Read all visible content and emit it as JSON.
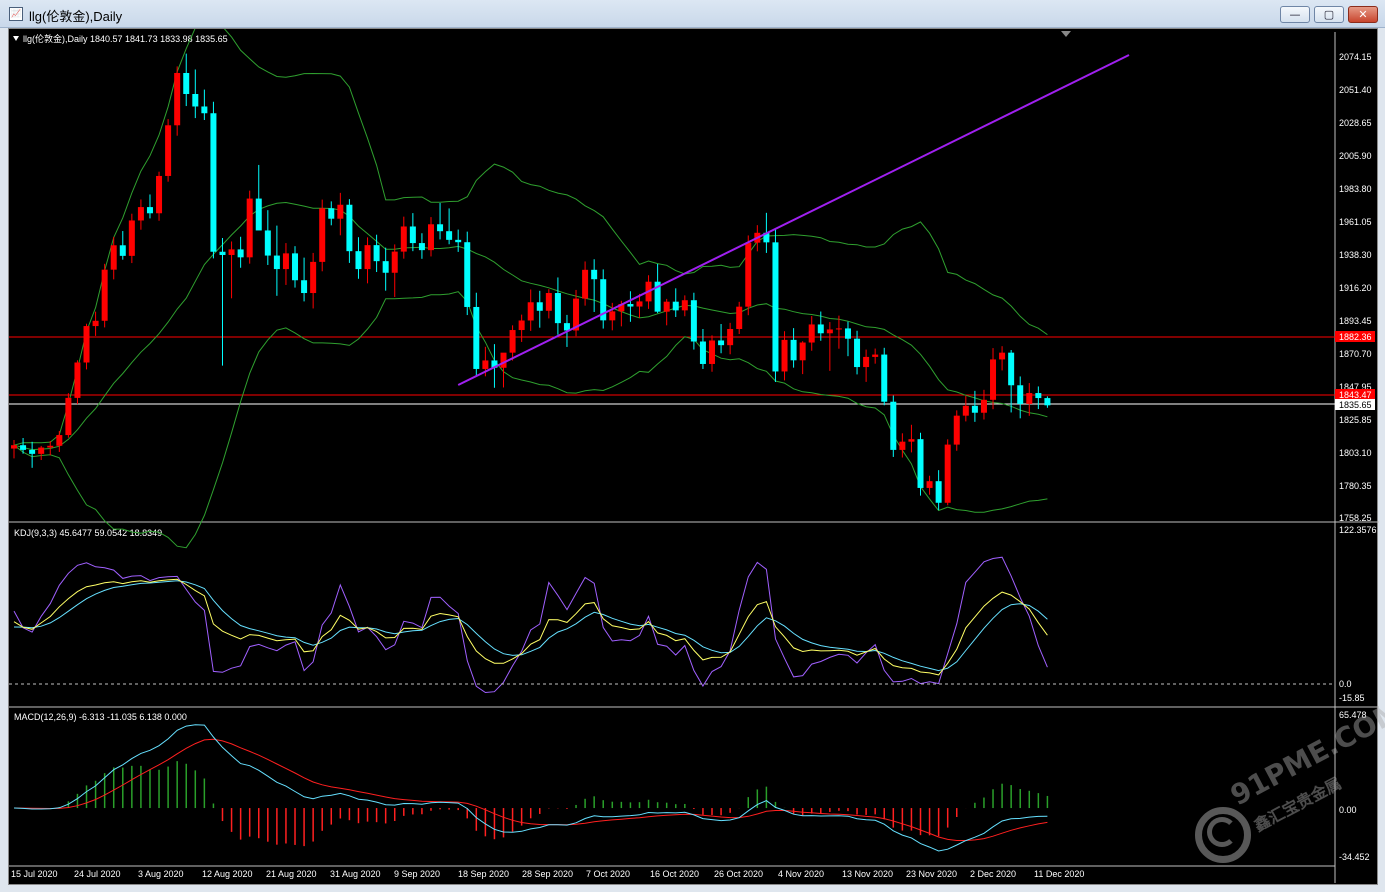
{
  "window": {
    "title": "llg(伦敦金),Daily",
    "icon": "chart-window-icon",
    "buttons": {
      "minimize": "—",
      "maximize": "▢",
      "close": "✕"
    }
  },
  "main_panel": {
    "header": "llg(伦敦金),Daily  1840.57 1841.73 1833.98 1835.65",
    "price_labels": [
      "2074.15",
      "2051.40",
      "2028.65",
      "2005.90",
      "1983.80",
      "1961.05",
      "1938.30",
      "1916.20",
      "1893.45",
      "1870.70",
      "1847.95",
      "1825.85",
      "1803.10",
      "1780.35",
      "1758.25"
    ],
    "marker_levels": [
      {
        "label": "1882.36",
        "value": 1882.36,
        "color": "#ff0000"
      },
      {
        "label": "1843.47",
        "value": 1843.47,
        "color": "#ff0000"
      },
      {
        "label": "1835.65",
        "value": 1835.65,
        "color": "#ffffff"
      }
    ]
  },
  "kdj_panel": {
    "header": "KDJ(9,3,3) 45.6477 59.0542 18.8349",
    "scale_labels": [
      "122.3576",
      "0.0",
      "-15.85"
    ]
  },
  "macd_panel": {
    "header": "MACD(12,26,9) -6.313 -11.035 6.138 0.000",
    "scale_labels": [
      "65.478",
      "0.00",
      "-34.452"
    ]
  },
  "x_axis_labels": [
    "15 Jul 2020",
    "24 Jul 2020",
    "3 Aug 2020",
    "12 Aug 2020",
    "21 Aug 2020",
    "31 Aug 2020",
    "9 Sep 2020",
    "18 Sep 2020",
    "28 Sep 2020",
    "7 Oct 2020",
    "16 Oct 2020",
    "26 Oct 2020",
    "4 Nov 2020",
    "13 Nov 2020",
    "23 Nov 2020",
    "2 Dec 2020",
    "11 Dec 2020"
  ],
  "watermark": {
    "main": "91PME.COM",
    "sub": "鑫汇宝贵金属"
  },
  "colors": {
    "bull": "#ff0000",
    "bear": "#00ffff",
    "bands": "#2fa02f",
    "trend": "#a020f0",
    "k": "#ffff66",
    "d": "#66e0ff",
    "j": "#a060ff",
    "macd_line": "#66e0ff",
    "signal_line": "#ff2020",
    "hist_pos": "#2aa02a",
    "hist_neg": "#ff2020"
  },
  "chart_data": {
    "type": "candlestick",
    "price_axis": {
      "min": 1758.25,
      "max": 2074.15
    },
    "candles": [
      [
        1806.2,
        1812.0,
        1799.5,
        1808.5
      ],
      [
        1808.5,
        1813.4,
        1802.7,
        1805.3
      ],
      [
        1805.3,
        1810.8,
        1793.1,
        1802.6
      ],
      [
        1802.6,
        1808.0,
        1798.4,
        1806.9
      ],
      [
        1806.9,
        1811.3,
        1801.6,
        1808.1
      ],
      [
        1808.1,
        1818.2,
        1803.9,
        1815.4
      ],
      [
        1815.4,
        1843.9,
        1813.6,
        1840.7
      ],
      [
        1840.7,
        1866.3,
        1836.5,
        1864.8
      ],
      [
        1864.8,
        1891.2,
        1860.1,
        1889.6
      ],
      [
        1889.6,
        1899.4,
        1882.9,
        1893.2
      ],
      [
        1893.2,
        1932.0,
        1888.7,
        1928.0
      ],
      [
        1928.0,
        1950.3,
        1921.4,
        1944.6
      ],
      [
        1944.6,
        1954.3,
        1934.8,
        1937.4
      ],
      [
        1937.4,
        1966.1,
        1932.5,
        1961.5
      ],
      [
        1961.5,
        1975.8,
        1955.2,
        1970.6
      ],
      [
        1970.6,
        1979.2,
        1962.9,
        1966.4
      ],
      [
        1966.4,
        1994.7,
        1961.3,
        1991.8
      ],
      [
        1991.8,
        2030.5,
        1987.9,
        2026.3
      ],
      [
        2026.3,
        2066.4,
        2019.2,
        2061.9
      ],
      [
        2061.9,
        2075.1,
        2039.4,
        2047.6
      ],
      [
        2047.6,
        2064.3,
        2031.2,
        2039.1
      ],
      [
        2039.1,
        2050.6,
        2029.9,
        2034.5
      ],
      [
        2034.5,
        2042.3,
        1935.7,
        1940.2
      ],
      [
        1940.2,
        1949.6,
        1862.7,
        1938.0
      ],
      [
        1938.0,
        1947.2,
        1908.5,
        1941.8
      ],
      [
        1941.8,
        1950.4,
        1929.3,
        1936.4
      ],
      [
        1936.4,
        1981.8,
        1932.1,
        1976.4
      ],
      [
        1976.4,
        1999.3,
        1957.4,
        1954.7
      ],
      [
        1954.7,
        1968.5,
        1931.2,
        1937.6
      ],
      [
        1937.6,
        1958.0,
        1910.2,
        1928.4
      ],
      [
        1928.4,
        1946.1,
        1917.6,
        1939.1
      ],
      [
        1939.1,
        1944.0,
        1915.8,
        1920.8
      ],
      [
        1920.8,
        1936.2,
        1906.4,
        1912.1
      ],
      [
        1912.1,
        1939.4,
        1901.6,
        1933.3
      ],
      [
        1933.3,
        1975.7,
        1926.9,
        1969.8
      ],
      [
        1969.8,
        1974.5,
        1958.2,
        1962.7
      ],
      [
        1962.7,
        1980.3,
        1951.4,
        1972.2
      ],
      [
        1972.2,
        1976.0,
        1932.6,
        1940.6
      ],
      [
        1940.6,
        1950.1,
        1921.8,
        1928.4
      ],
      [
        1928.4,
        1950.0,
        1918.7,
        1944.7
      ],
      [
        1944.7,
        1951.8,
        1926.4,
        1933.8
      ],
      [
        1933.8,
        1943.0,
        1913.7,
        1925.9
      ],
      [
        1925.9,
        1945.2,
        1909.4,
        1940.3
      ],
      [
        1940.3,
        1964.1,
        1935.5,
        1957.4
      ],
      [
        1957.4,
        1966.5,
        1940.6,
        1946.1
      ],
      [
        1946.1,
        1952.8,
        1935.4,
        1941.3
      ],
      [
        1941.3,
        1963.8,
        1937.0,
        1958.9
      ],
      [
        1958.9,
        1973.4,
        1948.6,
        1954.2
      ],
      [
        1954.2,
        1969.7,
        1945.3,
        1948.3
      ],
      [
        1948.3,
        1955.3,
        1940.1,
        1946.7
      ],
      [
        1946.7,
        1953.9,
        1897.1,
        1902.6
      ],
      [
        1902.6,
        1912.3,
        1855.9,
        1860.4
      ],
      [
        1860.4,
        1875.5,
        1855.4,
        1866.2
      ],
      [
        1866.2,
        1877.3,
        1847.6,
        1861.2
      ],
      [
        1861.2,
        1869.5,
        1847.8,
        1871.5
      ],
      [
        1871.5,
        1890.1,
        1866.1,
        1886.9
      ],
      [
        1886.9,
        1897.4,
        1878.8,
        1893.4
      ],
      [
        1893.4,
        1914.5,
        1886.3,
        1905.8
      ],
      [
        1905.8,
        1913.6,
        1888.5,
        1900.0
      ],
      [
        1900.0,
        1914.7,
        1894.8,
        1912.1
      ],
      [
        1912.1,
        1922.7,
        1883.7,
        1891.6
      ],
      [
        1891.6,
        1897.2,
        1875.4,
        1886.6
      ],
      [
        1886.6,
        1914.2,
        1882.7,
        1908.3
      ],
      [
        1908.3,
        1933.6,
        1903.5,
        1927.9
      ],
      [
        1927.9,
        1935.1,
        1899.2,
        1921.5
      ],
      [
        1921.5,
        1928.2,
        1887.9,
        1893.5
      ],
      [
        1893.5,
        1905.4,
        1886.7,
        1899.6
      ],
      [
        1899.6,
        1906.8,
        1889.4,
        1904.6
      ],
      [
        1904.6,
        1913.3,
        1892.5,
        1902.9
      ],
      [
        1902.9,
        1911.5,
        1895.2,
        1906.4
      ],
      [
        1906.4,
        1924.2,
        1901.3,
        1919.8
      ],
      [
        1919.8,
        1931.9,
        1898.4,
        1899.4
      ],
      [
        1899.4,
        1908.1,
        1890.1,
        1906.2
      ],
      [
        1906.2,
        1915.3,
        1895.8,
        1900.3
      ],
      [
        1900.3,
        1910.5,
        1896.3,
        1907.2
      ],
      [
        1907.2,
        1912.3,
        1873.6,
        1879.1
      ],
      [
        1879.1,
        1887.6,
        1860.4,
        1863.8
      ],
      [
        1863.8,
        1883.3,
        1858.5,
        1879.8
      ],
      [
        1879.8,
        1891.0,
        1871.1,
        1876.6
      ],
      [
        1876.6,
        1891.8,
        1870.4,
        1887.6
      ],
      [
        1887.6,
        1906.1,
        1884.2,
        1902.8
      ],
      [
        1902.8,
        1951.3,
        1897.0,
        1946.4
      ],
      [
        1946.4,
        1958.3,
        1940.5,
        1953.1
      ],
      [
        1953.1,
        1966.7,
        1939.4,
        1946.6
      ],
      [
        1946.6,
        1955.9,
        1851.5,
        1858.7
      ],
      [
        1858.7,
        1886.1,
        1852.6,
        1880.2
      ],
      [
        1880.2,
        1888.2,
        1861.3,
        1866.3
      ],
      [
        1866.3,
        1879.3,
        1856.9,
        1878.4
      ],
      [
        1878.4,
        1896.4,
        1872.8,
        1890.7
      ],
      [
        1890.7,
        1899.5,
        1879.6,
        1884.7
      ],
      [
        1884.7,
        1892.3,
        1859.1,
        1887.3
      ],
      [
        1887.3,
        1896.7,
        1874.2,
        1888.0
      ],
      [
        1888.0,
        1892.6,
        1869.1,
        1881.0
      ],
      [
        1881.0,
        1886.4,
        1856.7,
        1861.7
      ],
      [
        1861.7,
        1873.6,
        1851.6,
        1868.6
      ],
      [
        1868.6,
        1874.3,
        1864.0,
        1870.2
      ],
      [
        1870.2,
        1874.8,
        1835.7,
        1838.1
      ],
      [
        1838.1,
        1842.3,
        1800.5,
        1805.3
      ],
      [
        1805.3,
        1816.6,
        1800.1,
        1810.9
      ],
      [
        1810.9,
        1822.4,
        1803.6,
        1812.6
      ],
      [
        1812.6,
        1817.0,
        1774.2,
        1779.4
      ],
      [
        1779.4,
        1787.7,
        1774.8,
        1784.0
      ],
      [
        1784.0,
        1791.5,
        1764.3,
        1769.3
      ],
      [
        1769.3,
        1812.5,
        1767.6,
        1808.9
      ],
      [
        1808.9,
        1832.2,
        1804.7,
        1828.6
      ],
      [
        1828.6,
        1842.1,
        1824.7,
        1835.3
      ],
      [
        1835.3,
        1845.5,
        1824.4,
        1830.6
      ],
      [
        1830.6,
        1846.2,
        1826.0,
        1839.4
      ],
      [
        1839.4,
        1874.6,
        1833.0,
        1866.9
      ],
      [
        1866.9,
        1875.9,
        1859.4,
        1871.5
      ],
      [
        1871.5,
        1873.3,
        1830.8,
        1849.3
      ],
      [
        1849.3,
        1855.3,
        1826.8,
        1836.6
      ],
      [
        1836.6,
        1850.8,
        1828.5,
        1844.0
      ],
      [
        1844.0,
        1848.5,
        1833.1,
        1840.6
      ],
      [
        1840.57,
        1841.73,
        1833.98,
        1835.65
      ]
    ],
    "trendline": {
      "start_value": 1849.5,
      "end_value": 2074.15,
      "start_index": 49,
      "end_index": 123
    },
    "horizontal_lines": [
      1882.36,
      1843.47,
      1835.65
    ]
  }
}
